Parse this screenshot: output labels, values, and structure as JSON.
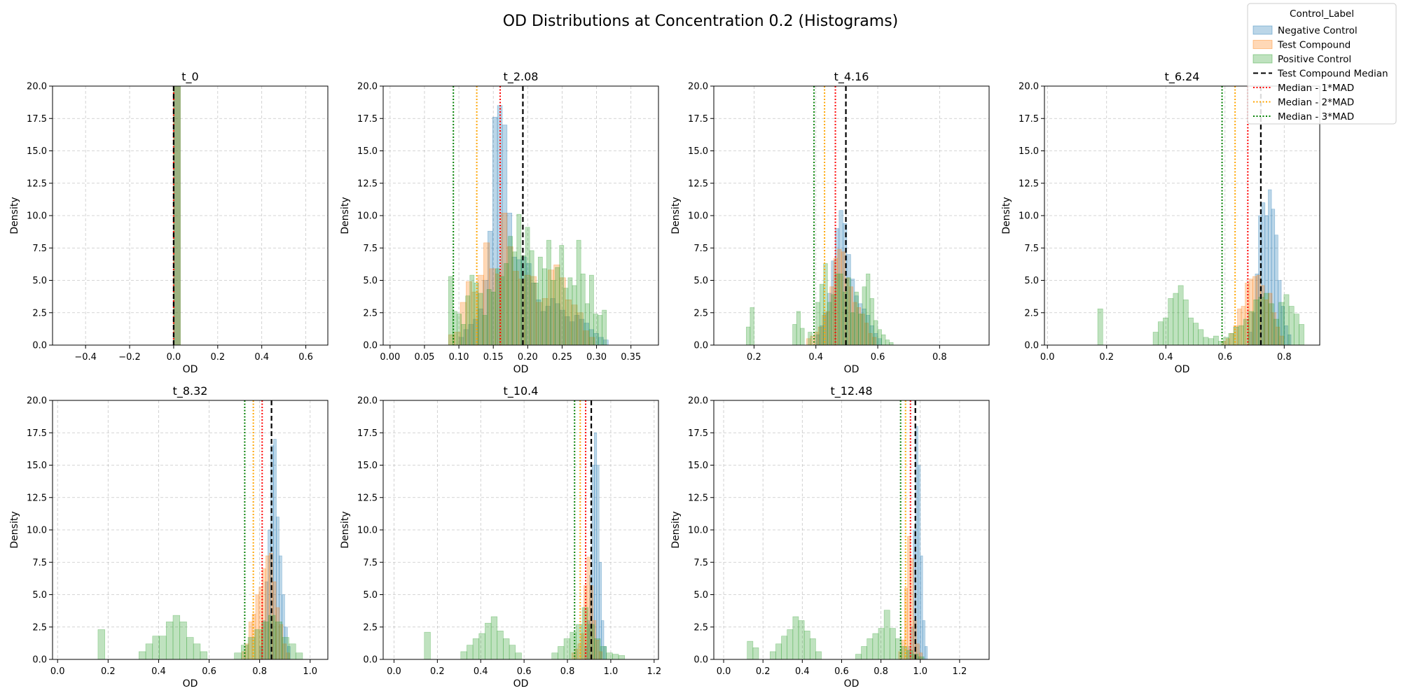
{
  "chart_data": {
    "type": "histogram",
    "title": "OD Distributions at Concentration 0.2 (Histograms)",
    "xlabel": "OD",
    "ylabel": "Density",
    "ylim": [
      0,
      20
    ],
    "yticks": [
      0.0,
      2.5,
      5.0,
      7.5,
      10.0,
      12.5,
      15.0,
      17.5,
      20.0
    ],
    "ytick_labels": [
      "0.0",
      "2.5",
      "5.0",
      "7.5",
      "10.0",
      "12.5",
      "15.0",
      "17.5",
      "20.0"
    ],
    "grid": true,
    "legend": {
      "title": "Control_Label",
      "placement": "top-right",
      "entries": [
        {
          "label": "Negative Control",
          "kind": "patch",
          "color": "#1f77b4"
        },
        {
          "label": "Test Compound",
          "kind": "patch",
          "color": "#ff7f0e"
        },
        {
          "label": "Positive Control",
          "kind": "patch",
          "color": "#2ca02c"
        },
        {
          "label": "Test Compound Median",
          "kind": "line",
          "color": "#000000",
          "dash": "dashed"
        },
        {
          "label": "Median - 1*MAD",
          "kind": "line",
          "color": "#ff0000",
          "dash": "dotted"
        },
        {
          "label": "Median - 2*MAD",
          "kind": "line",
          "color": "#ffa500",
          "dash": "dotted"
        },
        {
          "label": "Median - 3*MAD",
          "kind": "line",
          "color": "#008000",
          "dash": "dotted"
        }
      ]
    },
    "colors": {
      "negative": "#1f77b4",
      "test": "#ff7f0e",
      "positive": "#2ca02c",
      "median": "#000000",
      "mad1": "#ff0000",
      "mad2": "#ffa500",
      "mad3": "#008000"
    },
    "panels": [
      {
        "title": "t_0",
        "xlim": [
          -0.55,
          0.7
        ],
        "xticks": [
          -0.4,
          -0.2,
          0.0,
          0.2,
          0.4,
          0.6
        ],
        "xtick_labels": [
          "−0.4",
          "−0.2",
          "0.0",
          "0.2",
          "0.4",
          "0.6"
        ],
        "median": 0.0,
        "mad1": 0.0,
        "mad2": 0.0,
        "mad3": 0.0,
        "series": [
          {
            "name": "Negative Control",
            "key": "negative",
            "bins": [
              [
                0.0,
                0.03,
                20
              ]
            ]
          },
          {
            "name": "Test Compound",
            "key": "test",
            "bins": [
              [
                0.0,
                0.03,
                20
              ]
            ]
          },
          {
            "name": "Positive Control",
            "key": "positive",
            "bins": [
              [
                0.0,
                0.03,
                20
              ]
            ]
          }
        ]
      },
      {
        "title": "t_2.08",
        "xlim": [
          -0.01,
          0.39
        ],
        "xticks": [
          0.0,
          0.05,
          0.1,
          0.15,
          0.2,
          0.25,
          0.3,
          0.35
        ],
        "xtick_labels": [
          "0.00",
          "0.05",
          "0.10",
          "0.15",
          "0.20",
          "0.25",
          "0.30",
          "0.35"
        ],
        "median": 0.193,
        "mad1": 0.16,
        "mad2": 0.126,
        "mad3": 0.092,
        "series": [
          {
            "name": "Negative Control",
            "key": "negative",
            "start": 0.1,
            "width": 0.007,
            "values": [
              0.6,
              1.2,
              1.6,
              2.0,
              2.8,
              5.0,
              8.8,
              17.6,
              18.5,
              17.0,
              10.2,
              6.8,
              6.6,
              6.8,
              6.3,
              4.8,
              3.5,
              2.6,
              3.0,
              3.6,
              3.2,
              2.7,
              2.2,
              1.8,
              2.3,
              2.0,
              1.7,
              1.2,
              0.9,
              0.6,
              0.4
            ]
          },
          {
            "name": "Test Compound",
            "key": "test",
            "start": 0.085,
            "width": 0.0085,
            "values": [
              0.8,
              1.0,
              3.3,
              4.9,
              4.1,
              5.4,
              7.9,
              5.9,
              5.5,
              10.2,
              7.6,
              5.7,
              5.1,
              5.4,
              5.3,
              3.3,
              3.6,
              5.8,
              6.2,
              5.2,
              3.5,
              3.1,
              2.5,
              1.1,
              0.6
            ]
          },
          {
            "name": "Positive Control",
            "key": "positive",
            "start": 0.085,
            "width": 0.0062,
            "values": [
              5.3,
              2.6,
              2.4,
              1.6,
              3.8,
              5.4,
              4.8,
              4.0,
              2.3,
              4.3,
              4.1,
              5.9,
              5.3,
              6.3,
              8.4,
              7.2,
              10.1,
              6.9,
              9.1,
              7.3,
              4.8,
              6.8,
              5.9,
              8.1,
              5.0,
              6.0,
              7.7,
              4.4,
              5.2,
              4.6,
              8.1,
              5.5,
              3.2,
              5.4,
              2.4,
              2.3,
              2.7
            ]
          }
        ]
      },
      {
        "title": "t_4.16",
        "xlim": [
          0.07,
          0.96
        ],
        "xticks": [
          0.2,
          0.4,
          0.6,
          0.8
        ],
        "xtick_labels": [
          "0.2",
          "0.4",
          "0.6",
          "0.8"
        ],
        "median": 0.497,
        "mad1": 0.463,
        "mad2": 0.428,
        "mad3": 0.394,
        "series": [
          {
            "name": "Negative Control",
            "key": "negative",
            "start": 0.4,
            "width": 0.0125,
            "values": [
              0.8,
              1.5,
              2.5,
              4.0,
              6.5,
              9.0,
              10.4,
              9.4,
              7.0,
              5.1,
              3.8,
              3.2,
              2.8,
              2.3,
              1.5,
              0.9,
              0.5
            ]
          },
          {
            "name": "Test Compound",
            "key": "test",
            "start": 0.37,
            "width": 0.0125,
            "values": [
              0.5,
              0.7,
              1.0,
              1.4,
              2.3,
              2.6,
              4.5,
              6.7,
              7.4,
              7.2,
              5.2,
              4.5,
              3.3,
              2.9,
              2.4,
              1.7,
              0.9,
              0.6
            ]
          },
          {
            "name": "Positive Control",
            "key": "positive",
            "start": 0.15,
            "width": 0.0125,
            "values": [
              0,
              0,
              1.4,
              2.9,
              0,
              0,
              0,
              0,
              0,
              0,
              0,
              0,
              0,
              0,
              1.6,
              2.6,
              1.3,
              0,
              1.0,
              0,
              3.3,
              4.7,
              6.3,
              3.3,
              3.9,
              5.5,
              5.5,
              4.1,
              5.2,
              2.5,
              4.1,
              2.4,
              4.5,
              5.5,
              3.6,
              1.9,
              1.2,
              0.8,
              0.4,
              0.2
            ]
          }
        ]
      },
      {
        "title": "t_6.24",
        "xlim": [
          -0.01,
          0.92
        ],
        "xticks": [
          0.0,
          0.2,
          0.4,
          0.6,
          0.8
        ],
        "xtick_labels": [
          "0.0",
          "0.2",
          "0.4",
          "0.6",
          "0.8"
        ],
        "median": 0.721,
        "mad1": 0.677,
        "mad2": 0.634,
        "mad3": 0.59,
        "series": [
          {
            "name": "Negative Control",
            "key": "negative",
            "start": 0.68,
            "width": 0.011,
            "values": [
              1.0,
              2.5,
              5.5,
              10.0,
              11.0,
              10.0,
              12.0,
              10.5,
              8.5,
              5.0,
              3.0,
              1.5,
              0.8
            ]
          },
          {
            "name": "Test Compound",
            "key": "test",
            "start": 0.59,
            "width": 0.013,
            "values": [
              0.3,
              0.5,
              0.9,
              1.5,
              2.8,
              3.0,
              4.8,
              5.1,
              5.3,
              5.4,
              4.6,
              3.5,
              4.0,
              2.5,
              1.4,
              0.7
            ]
          },
          {
            "name": "Positive Control",
            "key": "positive",
            "start": 0.17,
            "width": 0.017,
            "values": [
              2.8,
              0,
              0,
              0,
              0,
              0,
              0,
              0,
              0,
              0,
              0,
              1.0,
              1.8,
              2.1,
              3.6,
              4.0,
              4.6,
              3.5,
              2.1,
              1.7,
              1.2,
              0.6,
              0.5,
              0.7,
              0.3,
              0.6,
              0.9,
              1.4,
              1.5,
              2.0,
              2.6,
              3.5,
              3.7,
              4.0,
              3.2,
              2.0,
              3.3,
              3.9,
              3.0,
              2.4,
              1.6
            ]
          }
        ]
      },
      {
        "title": "t_8.32",
        "xlim": [
          -0.02,
          1.07
        ],
        "xticks": [
          0.0,
          0.2,
          0.4,
          0.6,
          0.8,
          1.0
        ],
        "xtick_labels": [
          "0.0",
          "0.2",
          "0.4",
          "0.6",
          "0.8",
          "1.0"
        ],
        "median": 0.847,
        "mad1": 0.81,
        "mad2": 0.775,
        "mad3": 0.741,
        "series": [
          {
            "name": "Negative Control",
            "key": "negative",
            "start": 0.8,
            "width": 0.011,
            "values": [
              1.0,
              3.0,
              6.0,
              10.0,
              16.5,
              17.0,
              11.0,
              8.0,
              5.0,
              2.5,
              1.0
            ]
          },
          {
            "name": "Test Compound",
            "key": "test",
            "start": 0.73,
            "width": 0.0135,
            "values": [
              0.6,
              1.2,
              2.9,
              3.5,
              5.0,
              5.6,
              7.0,
              8.0,
              8.2,
              6.0,
              4.0,
              2.7,
              1.2,
              0.5
            ]
          },
          {
            "name": "Positive Control",
            "key": "positive",
            "start": 0.16,
            "width": 0.027,
            "values": [
              2.3,
              0,
              0,
              0,
              0,
              0,
              0.6,
              1.2,
              1.8,
              1.8,
              2.9,
              3.4,
              2.9,
              1.7,
              1.2,
              0.6,
              0,
              0,
              0,
              0,
              0.5,
              1.1,
              1.7,
              2.3,
              2.9,
              3.4,
              2.9,
              1.7,
              1.2,
              0.5
            ]
          }
        ]
      },
      {
        "title": "t_10.4",
        "xlim": [
          -0.05,
          1.22
        ],
        "xticks": [
          0.0,
          0.2,
          0.4,
          0.6,
          0.8,
          1.0,
          1.2
        ],
        "xtick_labels": [
          "0.0",
          "0.2",
          "0.4",
          "0.6",
          "0.8",
          "1.0",
          "1.2"
        ],
        "median": 0.91,
        "mad1": 0.884,
        "mad2": 0.859,
        "mad3": 0.833,
        "series": [
          {
            "name": "Negative Control",
            "key": "negative",
            "start": 0.88,
            "width": 0.011,
            "values": [
              1.0,
              3.0,
              6.5,
              15.0,
              17.5,
              15.0,
              7.5,
              3.0,
              1.0
            ]
          },
          {
            "name": "Test Compound",
            "key": "test",
            "start": 0.82,
            "width": 0.014,
            "values": [
              0.5,
              0.8,
              1.2,
              2.0,
              5.7,
              7.9,
              5.7,
              3.0,
              1.5,
              0.6
            ]
          },
          {
            "name": "Positive Control",
            "key": "positive",
            "start": 0.14,
            "width": 0.028,
            "values": [
              2.1,
              0,
              0,
              0,
              0,
              0,
              0.6,
              1.1,
              1.6,
              2.0,
              2.8,
              3.3,
              2.2,
              1.6,
              1.1,
              0.5,
              0,
              0,
              0,
              0,
              0,
              0.5,
              1.0,
              1.6,
              2.1,
              2.7,
              4.0,
              2.7,
              1.6,
              1.0,
              0.5,
              0.4,
              0.3
            ]
          }
        ]
      },
      {
        "title": "t_12.48",
        "xlim": [
          -0.05,
          1.35
        ],
        "xticks": [
          0.0,
          0.2,
          0.4,
          0.6,
          0.8,
          1.0,
          1.2
        ],
        "xtick_labels": [
          "0.0",
          "0.2",
          "0.4",
          "0.6",
          "0.8",
          "1.0",
          "1.2"
        ],
        "median": 0.975,
        "mad1": 0.95,
        "mad2": 0.925,
        "mad3": 0.9,
        "series": [
          {
            "name": "Negative Control",
            "key": "negative",
            "start": 0.94,
            "width": 0.012,
            "values": [
              1.0,
              2.5,
              10.0,
              18.0,
              15.0,
              8.0,
              3.0,
              1.0
            ]
          },
          {
            "name": "Test Compound",
            "key": "test",
            "start": 0.89,
            "width": 0.015,
            "values": [
              0.6,
              1.5,
              5.5,
              9.5,
              7.8,
              3.0,
              1.2,
              0.5
            ]
          },
          {
            "name": "Positive Control",
            "key": "positive",
            "start": 0.12,
            "width": 0.029,
            "values": [
              1.4,
              0.9,
              0,
              0,
              0.6,
              1.2,
              1.8,
              2.3,
              3.3,
              3.0,
              2.2,
              1.6,
              0.6,
              0,
              0,
              0,
              0,
              0,
              0,
              0.4,
              1.0,
              1.6,
              2.0,
              2.4,
              3.8,
              2.4,
              1.6,
              1.0,
              0.7,
              0.4,
              0.2
            ]
          }
        ]
      }
    ]
  }
}
